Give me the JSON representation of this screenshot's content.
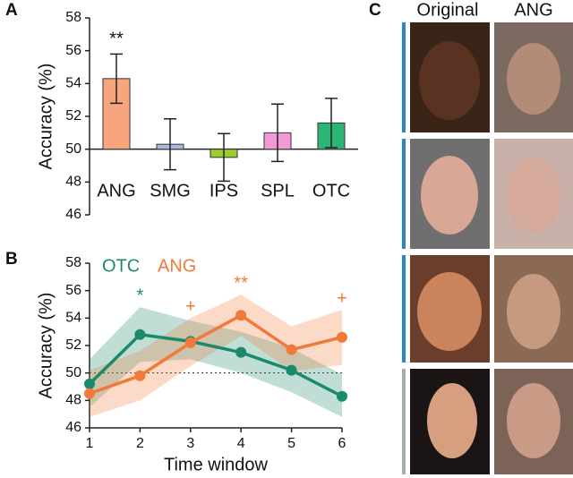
{
  "panels": {
    "labels": [
      "A",
      "B",
      "C"
    ]
  },
  "faces": {
    "column_headers": [
      "Original",
      "ANG"
    ]
  },
  "chart_data": [
    {
      "type": "bar",
      "ylabel": "Accuracy (%)",
      "categories": [
        "ANG",
        "SMG",
        "IPS",
        "SPL",
        "OTC"
      ],
      "values": [
        54.3,
        50.3,
        49.5,
        51.0,
        51.6
      ],
      "errors": [
        1.5,
        1.55,
        1.45,
        1.75,
        1.5
      ],
      "colors": [
        "#f7a57c",
        "#a9b9db",
        "#9ccc2e",
        "#f29ad8",
        "#2db673"
      ],
      "baseline": 50,
      "ylim": [
        46,
        58
      ],
      "yticks": [
        46,
        48,
        50,
        52,
        54,
        56,
        58
      ],
      "annotations": [
        {
          "text": "**",
          "category": "ANG"
        }
      ]
    },
    {
      "type": "line",
      "xlabel": "Time window",
      "ylabel": "Accuracy (%)",
      "x": [
        1,
        2,
        3,
        4,
        5,
        6
      ],
      "series": [
        {
          "name": "OTC",
          "color": "#1b8a6b",
          "values": [
            49.2,
            52.8,
            52.3,
            51.5,
            50.2,
            48.3
          ],
          "lower": [
            47.5,
            50.8,
            51.0,
            50.0,
            48.6,
            46.8
          ],
          "upper": [
            51.0,
            54.8,
            53.8,
            53.0,
            51.8,
            49.9
          ]
        },
        {
          "name": "ANG",
          "color": "#f07a3a",
          "values": [
            48.5,
            49.8,
            52.2,
            54.2,
            51.7,
            52.6
          ],
          "lower": [
            46.8,
            48.0,
            50.5,
            52.7,
            50.1,
            50.6
          ],
          "upper": [
            50.2,
            51.6,
            54.0,
            55.7,
            53.4,
            54.6
          ]
        }
      ],
      "reference_line": 50,
      "xlim": [
        1,
        6
      ],
      "xticks": [
        1,
        2,
        3,
        4,
        5,
        6
      ],
      "ylim": [
        46,
        58
      ],
      "yticks": [
        46,
        48,
        50,
        52,
        54,
        56,
        58
      ],
      "legend": "top-left",
      "annotations": [
        {
          "text": "*",
          "x": 2,
          "color": "#1b8a6b"
        },
        {
          "text": "+",
          "x": 3,
          "color": "#f07a3a"
        },
        {
          "text": "**",
          "x": 4,
          "color": "#f07a3a"
        },
        {
          "text": "+",
          "x": 6,
          "color": "#f07a3a"
        }
      ]
    }
  ]
}
